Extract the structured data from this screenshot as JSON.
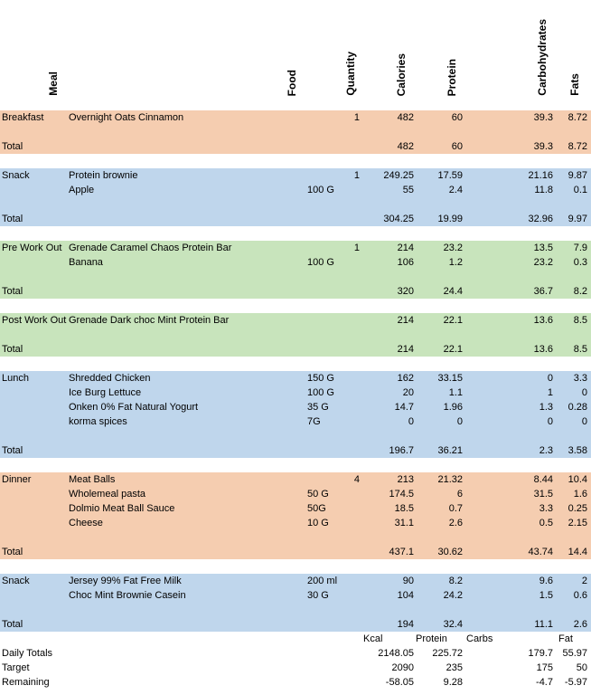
{
  "headers": {
    "meal": "Meal",
    "food": "Food",
    "quantity": "Quantity",
    "calories": "Calories",
    "protein": "Protein",
    "carbohydrates": "Carbohydrates",
    "fats": "Fats"
  },
  "colors": {
    "orange": "#f5cdb0",
    "blue": "#bfd6ec",
    "green": "#c8e4bc"
  },
  "meals": [
    {
      "name": "Breakfast",
      "color": "orange",
      "items": [
        {
          "desc": "Overnight Oats Cinnamon",
          "food": "",
          "qty": "1",
          "cal": "482",
          "pro": "60",
          "carb": "39.3",
          "fat": "8.72"
        }
      ],
      "total": {
        "label": "Total",
        "cal": "482",
        "pro": "60",
        "carb": "39.3",
        "fat": "8.72"
      }
    },
    {
      "name": "Snack",
      "color": "blue",
      "items": [
        {
          "desc": "Protein brownie",
          "food": "",
          "qty": "1",
          "cal": "249.25",
          "pro": "17.59",
          "carb": "21.16",
          "fat": "9.87"
        },
        {
          "desc": "Apple",
          "food": "100 G",
          "qty": "",
          "cal": "55",
          "pro": "2.4",
          "carb": "11.8",
          "fat": "0.1"
        }
      ],
      "total": {
        "label": "Total",
        "cal": "304.25",
        "pro": "19.99",
        "carb": "32.96",
        "fat": "9.97"
      }
    },
    {
      "name": "Pre Work Out",
      "color": "green",
      "items": [
        {
          "desc": "Grenade Caramel Chaos Protein Bar",
          "food": "",
          "qty": "1",
          "cal": "214",
          "pro": "23.2",
          "carb": "13.5",
          "fat": "7.9"
        },
        {
          "desc": "Banana",
          "food": "100 G",
          "qty": "",
          "cal": "106",
          "pro": "1.2",
          "carb": "23.2",
          "fat": "0.3"
        }
      ],
      "total": {
        "label": "Total",
        "cal": "320",
        "pro": "24.4",
        "carb": "36.7",
        "fat": "8.2"
      }
    },
    {
      "name": "Post Work Out",
      "color": "green",
      "items": [
        {
          "desc": "Grenade Dark choc Mint Protein Bar",
          "food": "",
          "qty": "",
          "cal": "214",
          "pro": "22.1",
          "carb": "13.6",
          "fat": "8.5"
        }
      ],
      "total": {
        "label": "Total",
        "cal": "214",
        "pro": "22.1",
        "carb": "13.6",
        "fat": "8.5"
      }
    },
    {
      "name": "Lunch",
      "color": "blue",
      "items": [
        {
          "desc": "Shredded Chicken",
          "food": "150 G",
          "qty": "",
          "cal": "162",
          "pro": "33.15",
          "carb": "0",
          "fat": "3.3"
        },
        {
          "desc": "Ice Burg Lettuce",
          "food": "100 G",
          "qty": "",
          "cal": "20",
          "pro": "1.1",
          "carb": "1",
          "fat": "0"
        },
        {
          "desc": "Onken 0% Fat Natural Yogurt",
          "food": "35 G",
          "qty": "",
          "cal": "14.7",
          "pro": "1.96",
          "carb": "1.3",
          "fat": "0.28"
        },
        {
          "desc": "korma spices",
          "food": "7G",
          "qty": "",
          "cal": "0",
          "pro": "0",
          "carb": "0",
          "fat": "0"
        }
      ],
      "total": {
        "label": "Total",
        "cal": "196.7",
        "pro": "36.21",
        "carb": "2.3",
        "fat": "3.58"
      }
    },
    {
      "name": "Dinner",
      "color": "orange",
      "items": [
        {
          "desc": "Meat Balls",
          "food": "",
          "qty": "4",
          "cal": "213",
          "pro": "21.32",
          "carb": "8.44",
          "fat": "10.4"
        },
        {
          "desc": "Wholemeal pasta",
          "food": "50 G",
          "qty": "",
          "cal": "174.5",
          "pro": "6",
          "carb": "31.5",
          "fat": "1.6"
        },
        {
          "desc": "Dolmio Meat Ball Sauce",
          "food": "50G",
          "qty": "",
          "cal": "18.5",
          "pro": "0.7",
          "carb": "3.3",
          "fat": "0.25"
        },
        {
          "desc": "Cheese",
          "food": "10 G",
          "qty": "",
          "cal": "31.1",
          "pro": "2.6",
          "carb": "0.5",
          "fat": "2.15"
        }
      ],
      "total": {
        "label": "Total",
        "cal": "437.1",
        "pro": "30.62",
        "carb": "43.74",
        "fat": "14.4"
      }
    },
    {
      "name": "Snack",
      "color": "blue",
      "items": [
        {
          "desc": "Jersey 99% Fat Free Milk",
          "food": "200 ml",
          "qty": "",
          "cal": "90",
          "pro": "8.2",
          "carb": "9.6",
          "fat": "2"
        },
        {
          "desc": "Choc Mint Brownie Casein",
          "food": "30 G",
          "qty": "",
          "cal": "104",
          "pro": "24.2",
          "carb": "1.5",
          "fat": "0.6"
        }
      ],
      "total": {
        "label": "Total",
        "cal": "194",
        "pro": "32.4",
        "carb": "11.1",
        "fat": "2.6"
      }
    }
  ],
  "summary": {
    "units": {
      "kcal": "Kcal",
      "protein": "Protein",
      "carbs": "Carbs",
      "fat": "Fat"
    },
    "rows": [
      {
        "label": "Daily Totals",
        "cal": "2148.05",
        "pro": "225.72",
        "carb": "179.7",
        "fat": "55.97"
      },
      {
        "label": "Target",
        "cal": "2090",
        "pro": "235",
        "carb": "175",
        "fat": "50"
      },
      {
        "label": "Remaining",
        "cal": "-58.05",
        "pro": "9.28",
        "carb": "-4.7",
        "fat": "-5.97"
      }
    ]
  }
}
